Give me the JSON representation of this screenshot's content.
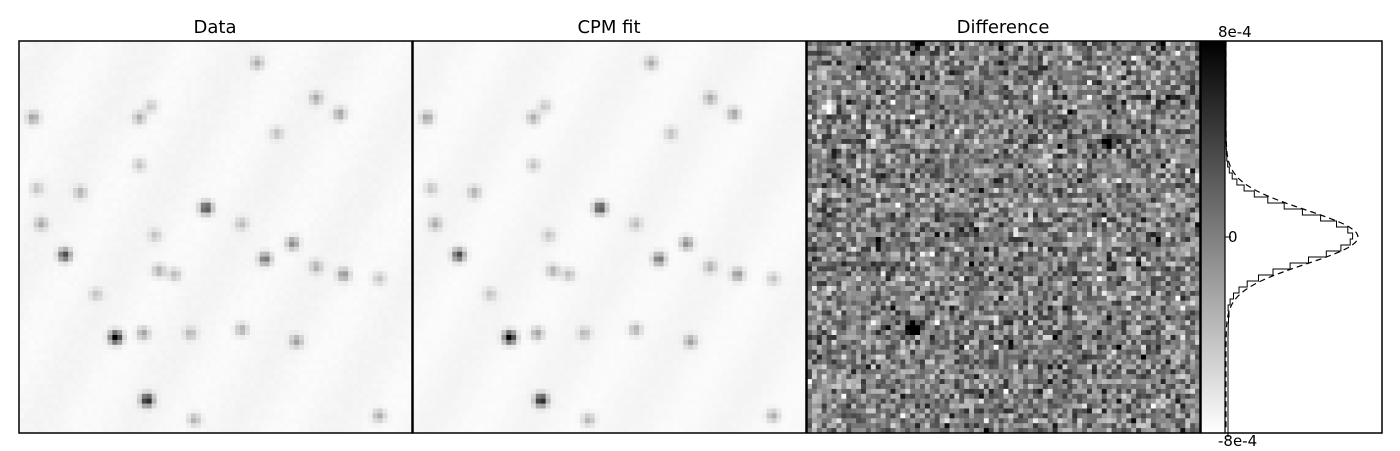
{
  "figure": {
    "panels": [
      {
        "title": "Data"
      },
      {
        "title": "CPM fit"
      },
      {
        "title": "Difference"
      }
    ],
    "colormap": "gray_r",
    "colorbar": {
      "max_label": "8e-4",
      "mid_label": "0",
      "min_label": "-8e-4",
      "range": [
        -0.0008,
        0.0008
      ]
    },
    "histogram": {
      "observed_style": "solid-step",
      "model_style": "dashed-gaussian"
    }
  },
  "chart_data": {
    "type": "heatmap",
    "panels": [
      "Data",
      "CPM fit",
      "Difference"
    ],
    "colorbar_ticks": [
      "8e-4",
      "0",
      "-8e-4"
    ],
    "colorbar_range": [
      -0.0008,
      0.0008
    ],
    "grid": false,
    "stars": [
      {
        "x": 0.47,
        "y": 0.42,
        "b": 0.75
      },
      {
        "x": 0.11,
        "y": 0.54,
        "b": 0.72
      },
      {
        "x": 0.24,
        "y": 0.75,
        "b": 1.0
      },
      {
        "x": 0.32,
        "y": 0.91,
        "b": 0.88
      },
      {
        "x": 0.62,
        "y": 0.55,
        "b": 0.55
      },
      {
        "x": 0.69,
        "y": 0.51,
        "b": 0.45
      },
      {
        "x": 0.82,
        "y": 0.59,
        "b": 0.4
      },
      {
        "x": 0.35,
        "y": 0.58,
        "b": 0.3
      },
      {
        "x": 0.03,
        "y": 0.19,
        "b": 0.35
      },
      {
        "x": 0.3,
        "y": 0.19,
        "b": 0.3
      },
      {
        "x": 0.05,
        "y": 0.46,
        "b": 0.3
      },
      {
        "x": 0.15,
        "y": 0.38,
        "b": 0.28
      },
      {
        "x": 0.81,
        "y": 0.18,
        "b": 0.35
      },
      {
        "x": 0.75,
        "y": 0.14,
        "b": 0.3
      },
      {
        "x": 0.6,
        "y": 0.05,
        "b": 0.3
      },
      {
        "x": 0.31,
        "y": 0.74,
        "b": 0.35
      },
      {
        "x": 0.56,
        "y": 0.73,
        "b": 0.3
      },
      {
        "x": 0.7,
        "y": 0.76,
        "b": 0.35
      },
      {
        "x": 0.43,
        "y": 0.74,
        "b": 0.25
      },
      {
        "x": 0.91,
        "y": 0.95,
        "b": 0.3
      },
      {
        "x": 0.44,
        "y": 0.96,
        "b": 0.28
      },
      {
        "x": 0.75,
        "y": 0.57,
        "b": 0.28
      },
      {
        "x": 0.39,
        "y": 0.59,
        "b": 0.25
      },
      {
        "x": 0.56,
        "y": 0.46,
        "b": 0.22
      },
      {
        "x": 0.3,
        "y": 0.31,
        "b": 0.22
      },
      {
        "x": 0.91,
        "y": 0.6,
        "b": 0.22
      },
      {
        "x": 0.04,
        "y": 0.37,
        "b": 0.22
      },
      {
        "x": 0.33,
        "y": 0.16,
        "b": 0.2
      },
      {
        "x": 0.34,
        "y": 0.49,
        "b": 0.2
      },
      {
        "x": 0.19,
        "y": 0.64,
        "b": 0.2
      },
      {
        "x": 0.65,
        "y": 0.23,
        "b": 0.22
      }
    ],
    "difference_features": [
      {
        "x": 0.76,
        "y": 0.25,
        "v": 1.0
      },
      {
        "x": 0.26,
        "y": 0.72,
        "v": 0.85
      },
      {
        "x": 0.27,
        "y": 0.73,
        "v": 0.7
      },
      {
        "x": 0.28,
        "y": 0.0,
        "v": 0.9
      },
      {
        "x": 0.05,
        "y": 0.17,
        "v": -0.9
      },
      {
        "x": 0.05,
        "y": 0.18,
        "v": 0.5
      }
    ]
  }
}
